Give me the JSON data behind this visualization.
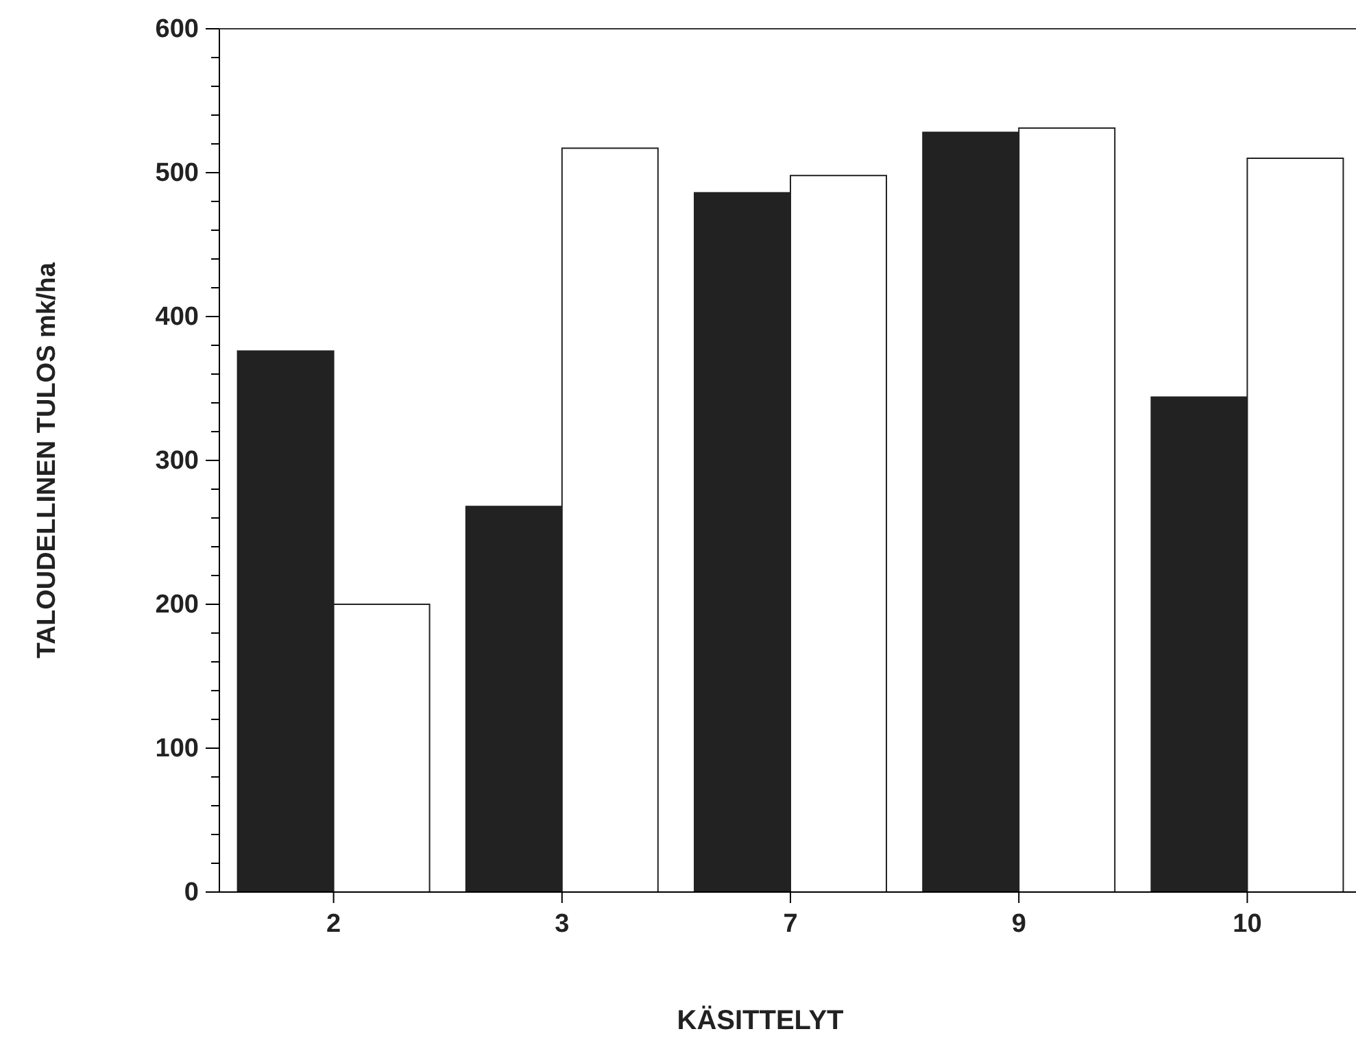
{
  "chart_data": {
    "type": "bar",
    "xlabel": "KÄSITTELYT",
    "ylabel": "TALOUDELLINEN TULOS mk/ha",
    "categories": [
      "2",
      "3",
      "7",
      "9",
      "10"
    ],
    "series": [
      {
        "color": "#222222",
        "values": [
          376,
          268,
          486,
          528,
          344
        ]
      },
      {
        "color": "#ffffff",
        "values": [
          200,
          517,
          498,
          531,
          510
        ]
      }
    ],
    "ylim": [
      0,
      600
    ],
    "yticks": [
      0,
      {
        "value": 20,
        "label": null
      },
      {
        "value": 40,
        "label": null
      },
      {
        "value": 60,
        "label": null
      },
      {
        "value": 80,
        "label": null
      },
      100,
      {
        "value": 120,
        "label": null
      },
      {
        "value": 140,
        "label": null
      },
      {
        "value": 160,
        "label": null
      },
      {
        "value": 180,
        "label": null
      },
      200,
      {
        "value": 220,
        "label": null
      },
      {
        "value": 240,
        "label": null
      },
      {
        "value": 260,
        "label": null
      },
      {
        "value": 280,
        "label": null
      },
      300,
      {
        "value": 320,
        "label": null
      },
      {
        "value": 340,
        "label": null
      },
      {
        "value": 360,
        "label": null
      },
      {
        "value": 380,
        "label": null
      },
      400,
      {
        "value": 420,
        "label": null
      },
      {
        "value": 440,
        "label": null
      },
      {
        "value": 460,
        "label": null
      },
      {
        "value": 480,
        "label": null
      },
      500,
      {
        "value": 520,
        "label": null
      },
      {
        "value": 540,
        "label": null
      },
      {
        "value": 560,
        "label": null
      },
      {
        "value": 580,
        "label": null
      },
      600
    ],
    "grid": false
  }
}
